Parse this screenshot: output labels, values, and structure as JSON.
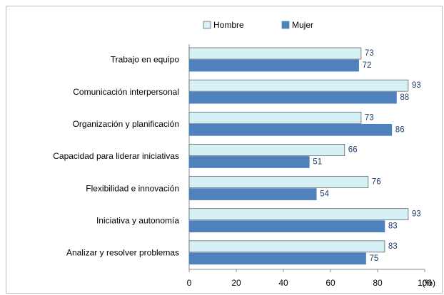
{
  "chart_data": {
    "type": "hbar",
    "categories": [
      "Trabajo en equipo",
      "Comunicación interpersonal",
      "Organización y planificación",
      "Capacidad para liderar iniciativas",
      "Flexibilidad e innovación",
      "Iniciativa y autonomía",
      "Analizar y resolver problemas"
    ],
    "series": [
      {
        "name": "Hombre",
        "color": "#d5f1f6",
        "values": [
          73,
          93,
          73,
          66,
          76,
          93,
          83
        ]
      },
      {
        "name": "Mujer",
        "color": "#4f81bd",
        "values": [
          72,
          88,
          86,
          51,
          54,
          83,
          75
        ]
      }
    ],
    "x_label": "(%)",
    "xlim": [
      0,
      100
    ],
    "xticks": [
      0,
      20,
      40,
      60,
      80,
      100
    ],
    "legend": "top",
    "grid": false
  }
}
